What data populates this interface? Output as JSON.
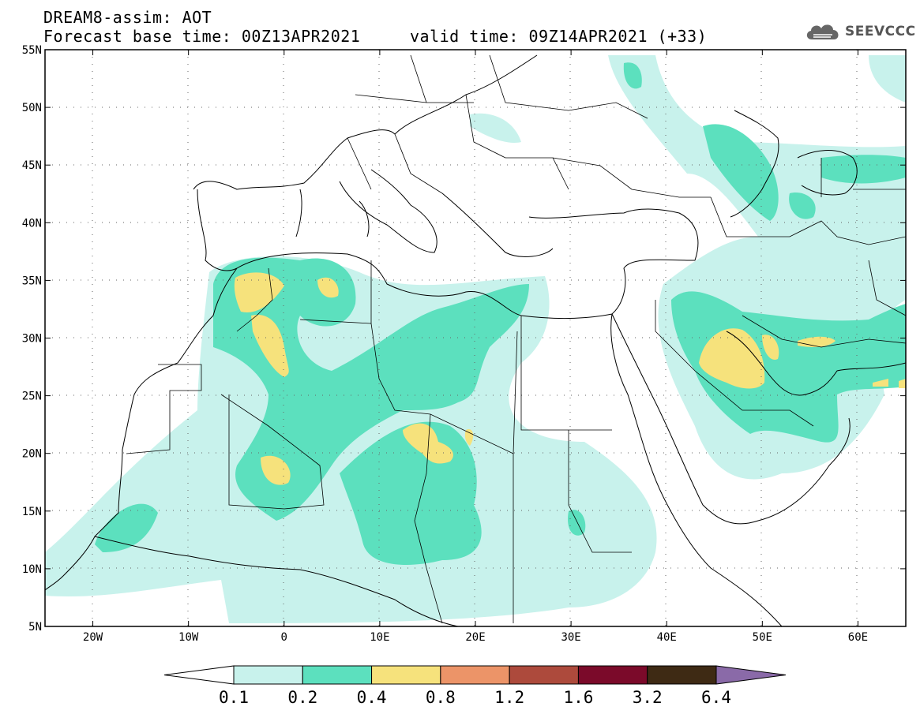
{
  "header": {
    "line1": "DREAM8-assim: AOT",
    "line2": "Forecast base time: 00Z13APR2021     valid time: 09Z14APR2021 (+33)"
  },
  "logo": {
    "text": "SEEVCCC",
    "icon": "cloud-icon"
  },
  "map": {
    "lon_range": [
      -25,
      65
    ],
    "lat_range": [
      5,
      55
    ],
    "x_ticks": [
      "20W",
      "10W",
      "0",
      "10E",
      "20E",
      "30E",
      "40E",
      "50E",
      "60E"
    ],
    "y_ticks": [
      "55N",
      "50N",
      "45N",
      "40N",
      "35N",
      "30N",
      "25N",
      "20N",
      "15N",
      "10N",
      "5N"
    ],
    "grid": "dotted"
  },
  "colorbar": {
    "colors": [
      "#ffffff",
      "#c8f2ec",
      "#5ce0be",
      "#f6e27c",
      "#ec9468",
      "#ad4a3c",
      "#7b0a2a",
      "#3e2a14",
      "#8a6aa8"
    ],
    "labels": [
      "0.1",
      "0.2",
      "0.4",
      "0.8",
      "1.2",
      "1.6",
      "3.2",
      "6.4"
    ]
  }
}
